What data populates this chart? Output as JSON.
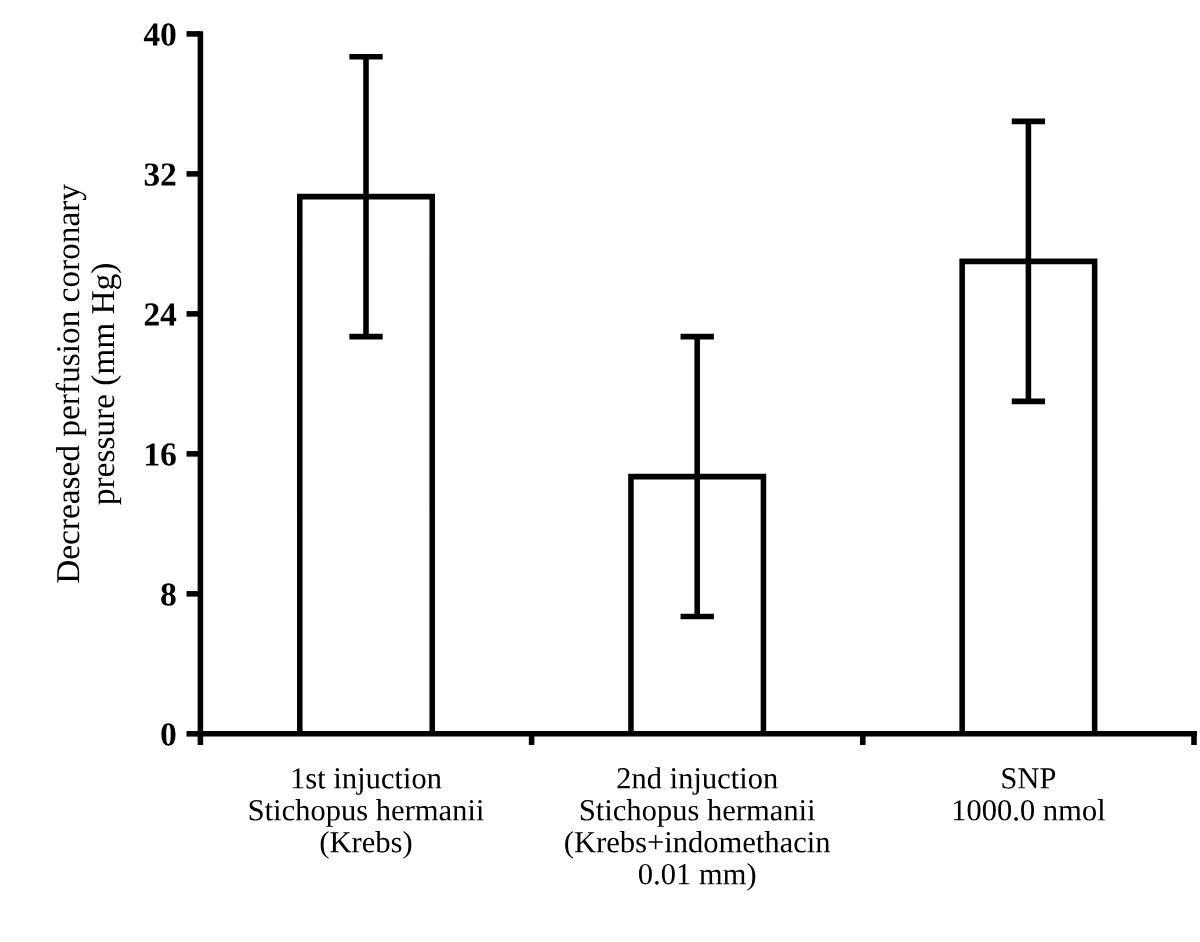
{
  "chart_data": {
    "type": "bar",
    "ylabel": "Decreased perfusion coronary\npressure (mm Hg)",
    "categories": [
      "1st injuction\nStichopus hermanii\n(Krebs)",
      "2nd injuction\nStichopus hermanii\n(Krebs+indomethacin\n0.01 mm)",
      "SNP\n1000.0 nmol"
    ],
    "values": [
      30.7,
      14.7,
      27.0
    ],
    "errors": [
      8.0,
      8.0,
      8.0
    ],
    "color": "#ffffff",
    "ylim": [
      0,
      40
    ],
    "yticks": [
      0,
      8,
      16,
      24,
      32,
      40
    ],
    "grid": false,
    "legend": false
  }
}
